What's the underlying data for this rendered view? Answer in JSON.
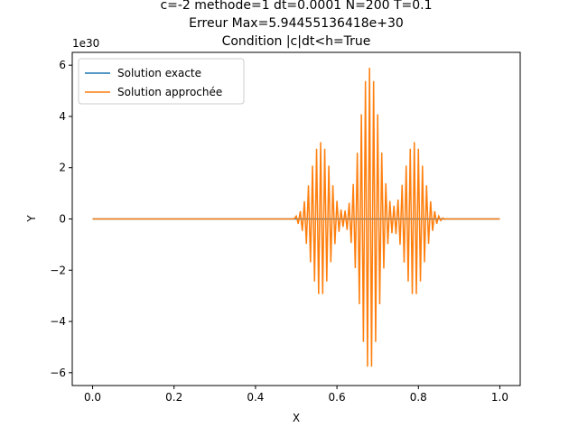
{
  "chart_data": {
    "type": "line",
    "title_lines": [
      "c=-2 methode=1 dt=0.0001 N=200 T=0.1",
      "Erreur Max=5.94455136418e+30",
      "Condition |c|dt<h=True"
    ],
    "xlabel": "X",
    "ylabel": "Y",
    "y_offset_label": "1e30",
    "xlim": [
      -0.05,
      1.05
    ],
    "ylim": [
      -6.5,
      6.5
    ],
    "x_ticks": [
      0.0,
      0.2,
      0.4,
      0.6,
      0.8,
      1.0
    ],
    "x_tick_labels": [
      "0.0",
      "0.2",
      "0.4",
      "0.6",
      "0.8",
      "1.0"
    ],
    "y_ticks": [
      -6,
      -4,
      -2,
      0,
      2,
      4,
      6
    ],
    "y_tick_labels": [
      "−6",
      "−4",
      "−2",
      "0",
      "2",
      "4",
      "6"
    ],
    "grid": false,
    "legend_position": "top-left",
    "colors": {
      "exact": "#1f77b4",
      "approx": "#ff7f0e",
      "axes": "#000000",
      "background": "#ffffff"
    },
    "series": [
      {
        "name": "Solution exacte",
        "color": "#1f77b4",
        "x_range": [
          0.0,
          1.0
        ],
        "values_constant": 0
      },
      {
        "name": "Solution approchée",
        "color": "#ff7f0e",
        "x_range": [
          0.0,
          1.0
        ],
        "points": 201,
        "oscillation_period_x": 0.01,
        "envelope_peaks": [
          {
            "x": 0.56,
            "amplitude": 3.0
          },
          {
            "x": 0.68,
            "amplitude": 5.9
          },
          {
            "x": 0.79,
            "amplitude": 3.0
          }
        ],
        "envelope_width_x": 0.033,
        "support_x": [
          0.5,
          0.88
        ]
      }
    ]
  }
}
